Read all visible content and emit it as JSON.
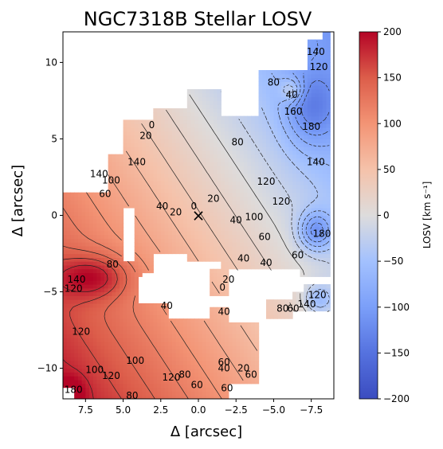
{
  "chart_data": {
    "type": "heatmap",
    "title": "NGC7318B Stellar LOSV",
    "xlabel": "Δ [arcsec]",
    "ylabel": "Δ [arcsec]",
    "xlim": [
      9,
      -9
    ],
    "ylim": [
      -12,
      12
    ],
    "xticks": [
      7.5,
      5.0,
      2.5,
      0.0,
      -2.5,
      -5.0,
      -7.5
    ],
    "xtick_labels": [
      "7.5",
      "5.0",
      "2.5",
      "0.0",
      "−2.5",
      "−5.0",
      "−7.5"
    ],
    "yticks": [
      10,
      5,
      0,
      -5,
      -10
    ],
    "ytick_labels": [
      "10",
      "5",
      "0",
      "−5",
      "−10"
    ],
    "colorbar": {
      "label": "LOSV [km s⁻¹]",
      "colormap": "coolwarm",
      "range": [
        -200,
        200
      ],
      "ticks": [
        200,
        150,
        100,
        50,
        0,
        -50,
        -100,
        -150,
        -200
      ],
      "tick_labels": [
        "200",
        "150",
        "100",
        "50",
        "0",
        "−50",
        "−100",
        "−150",
        "−200"
      ],
      "low_color": "#3b4cc0",
      "mid_color": "#dddddd",
      "high_color": "#b40426"
    },
    "marker": {
      "symbol": "×",
      "x": 0.0,
      "y": 0.0
    },
    "contour_labels": [
      {
        "text": "140",
        "x": -7.8,
        "y": 10.7
      },
      {
        "text": "120",
        "x": -8.0,
        "y": 9.7
      },
      {
        "text": "80",
        "x": -5.0,
        "y": 8.7
      },
      {
        "text": "40",
        "x": -6.2,
        "y": 7.9
      },
      {
        "text": "160",
        "x": -6.3,
        "y": 6.8
      },
      {
        "text": "180",
        "x": -7.5,
        "y": 5.8
      },
      {
        "text": "140",
        "x": -7.8,
        "y": 3.5
      },
      {
        "text": "120",
        "x": -4.5,
        "y": 2.2
      },
      {
        "text": "120",
        "x": -5.5,
        "y": 0.9
      },
      {
        "text": "0",
        "x": 3.1,
        "y": 5.9
      },
      {
        "text": "20",
        "x": 3.5,
        "y": 5.2
      },
      {
        "text": "80",
        "x": -2.6,
        "y": 4.8
      },
      {
        "text": "140",
        "x": 6.6,
        "y": 2.7
      },
      {
        "text": "100",
        "x": 5.8,
        "y": 2.3
      },
      {
        "text": "60",
        "x": 6.2,
        "y": 1.4
      },
      {
        "text": "40",
        "x": 2.4,
        "y": 0.6
      },
      {
        "text": "20",
        "x": 1.5,
        "y": 0.2
      },
      {
        "text": "0",
        "x": 0.3,
        "y": 0.6
      },
      {
        "text": "20",
        "x": -1.0,
        "y": 1.1
      },
      {
        "text": "40",
        "x": -2.5,
        "y": -0.3
      },
      {
        "text": "100",
        "x": -3.7,
        "y": -0.1
      },
      {
        "text": "60",
        "x": -4.4,
        "y": -1.4
      },
      {
        "text": "40",
        "x": -3.0,
        "y": -2.8
      },
      {
        "text": "40",
        "x": -4.5,
        "y": -3.1
      },
      {
        "text": "180",
        "x": -8.2,
        "y": -1.2
      },
      {
        "text": "60",
        "x": -6.6,
        "y": -2.6
      },
      {
        "text": "80",
        "x": 5.7,
        "y": -3.2
      },
      {
        "text": "140",
        "x": 8.1,
        "y": -4.2
      },
      {
        "text": "120",
        "x": 8.3,
        "y": -4.8
      },
      {
        "text": "20",
        "x": -2.0,
        "y": -4.2
      },
      {
        "text": "0",
        "x": -1.6,
        "y": -4.7
      },
      {
        "text": "40",
        "x": 2.1,
        "y": -5.9
      },
      {
        "text": "40",
        "x": -1.7,
        "y": -6.3
      },
      {
        "text": "80",
        "x": -5.6,
        "y": -6.1
      },
      {
        "text": "60",
        "x": -6.3,
        "y": -6.1
      },
      {
        "text": "120",
        "x": -7.9,
        "y": -5.2
      },
      {
        "text": "140",
        "x": -7.2,
        "y": -5.8
      },
      {
        "text": "120",
        "x": 7.8,
        "y": -7.6
      },
      {
        "text": "100",
        "x": 6.9,
        "y": -10.1
      },
      {
        "text": "120",
        "x": 5.8,
        "y": -10.5
      },
      {
        "text": "100",
        "x": 4.2,
        "y": -9.5
      },
      {
        "text": "120",
        "x": 1.8,
        "y": -10.6
      },
      {
        "text": "80",
        "x": 0.9,
        "y": -10.4
      },
      {
        "text": "60",
        "x": 0.1,
        "y": -11.1
      },
      {
        "text": "60",
        "x": -1.7,
        "y": -9.6
      },
      {
        "text": "40",
        "x": -1.7,
        "y": -10.0
      },
      {
        "text": "20",
        "x": -3.0,
        "y": -10.0
      },
      {
        "text": "60",
        "x": -3.5,
        "y": -10.4
      },
      {
        "text": "60",
        "x": -1.9,
        "y": -11.3
      },
      {
        "text": "80",
        "x": 4.4,
        "y": -11.8
      },
      {
        "text": "180",
        "x": 8.3,
        "y": -11.4
      },
      {
        "text": "140",
        "x": 4.1,
        "y": 3.5
      }
    ]
  }
}
